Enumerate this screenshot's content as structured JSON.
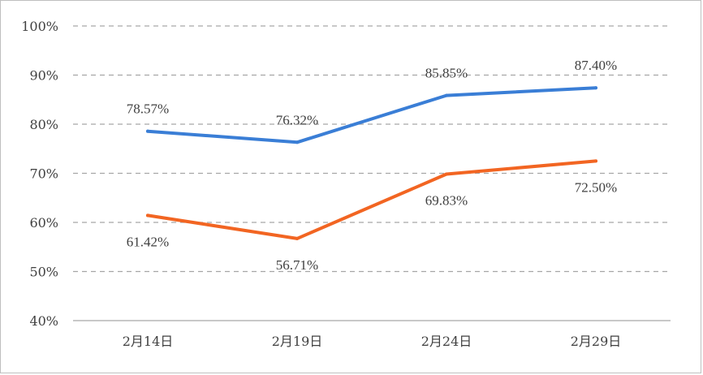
{
  "chart_data": {
    "type": "line",
    "title": "",
    "xlabel": "",
    "ylabel": "",
    "categories": [
      "2月14日",
      "2月19日",
      "2月24日",
      "2月29日"
    ],
    "ylim": [
      0.4,
      1.0
    ],
    "yticks": [
      "40%",
      "50%",
      "60%",
      "70%",
      "80%",
      "90%",
      "100%"
    ],
    "grid": true,
    "legend": "none",
    "series": [
      {
        "color": "#3a7ed6",
        "values": [
          0.7857,
          0.7632,
          0.8585,
          0.874
        ],
        "labels": [
          "78.57%",
          "76.32%",
          "85.85%",
          "87.40%"
        ],
        "label_position": "above"
      },
      {
        "color": "#f26522",
        "values": [
          0.6142,
          0.5671,
          0.6983,
          0.725
        ],
        "labels": [
          "61.42%",
          "56.71%",
          "69.83%",
          "72.50%"
        ],
        "label_position": "below"
      }
    ]
  }
}
